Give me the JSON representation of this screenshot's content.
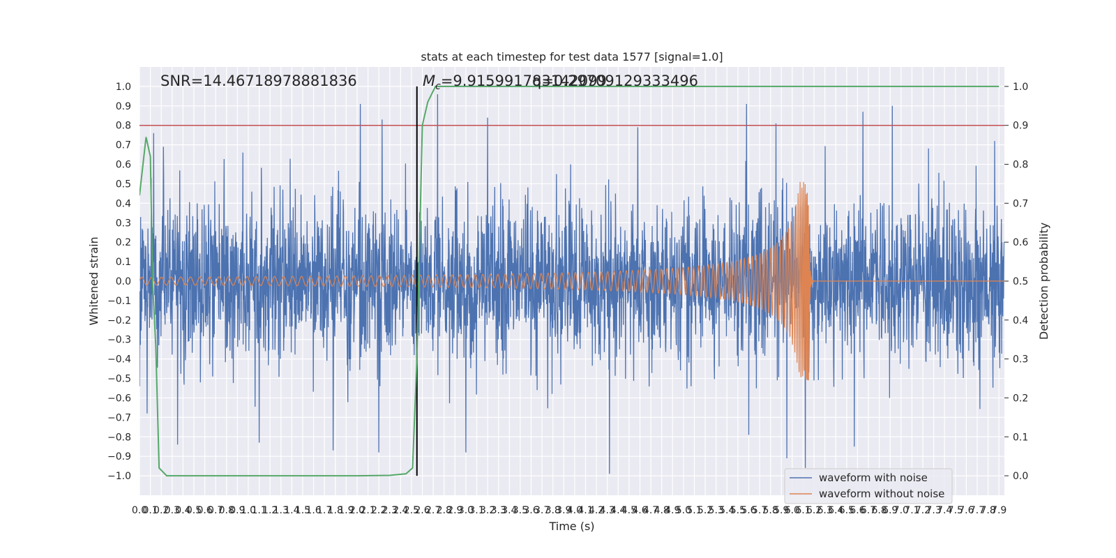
{
  "chart_data": {
    "type": "line",
    "title": "stats at each timestep for test data 1577 [signal=1.0]",
    "xlabel": "Time (s)",
    "ylabel_left": "Whitened strain",
    "ylabel_right": "Detection probability",
    "xlim": [
      0.0,
      7.95
    ],
    "ylim_left": [
      -1.1,
      1.1
    ],
    "ylim_right": [
      -0.05,
      1.05
    ],
    "x_ticks": [
      "0.0",
      "0.1",
      "0.2",
      "0.3",
      "0.4",
      "0.5",
      "0.6",
      "0.7",
      "0.8",
      "0.9",
      "1.0",
      "1.1",
      "1.2",
      "1.3",
      "1.4",
      "1.5",
      "1.6",
      "1.7",
      "1.8",
      "1.9",
      "2.0",
      "2.1",
      "2.2",
      "2.3",
      "2.4",
      "2.5",
      "2.6",
      "2.7",
      "2.8",
      "2.9",
      "3.0",
      "3.1",
      "3.2",
      "3.3",
      "3.4",
      "3.5",
      "3.6",
      "3.7",
      "3.8",
      "3.9",
      "4.0",
      "4.1",
      "4.2",
      "4.3",
      "4.4",
      "4.5",
      "4.6",
      "4.7",
      "4.8",
      "4.9",
      "5.0",
      "5.1",
      "5.2",
      "5.3",
      "5.4",
      "5.5",
      "5.6",
      "5.7",
      "5.8",
      "5.9",
      "6.0",
      "6.1",
      "6.2",
      "6.3",
      "6.4",
      "6.5",
      "6.6",
      "6.7",
      "6.8",
      "6.9",
      "7.0",
      "7.1",
      "7.2",
      "7.3",
      "7.4",
      "7.5",
      "7.6",
      "7.7",
      "7.8",
      "7.9"
    ],
    "y_ticks_left": [
      "−1.0",
      "−0.9",
      "−0.8",
      "−0.7",
      "−0.6",
      "−0.5",
      "−0.4",
      "−0.3",
      "−0.2",
      "−0.1",
      "0.0",
      "0.1",
      "0.2",
      "0.3",
      "0.4",
      "0.5",
      "0.6",
      "0.7",
      "0.8",
      "0.9",
      "1.0"
    ],
    "y_ticks_right": [
      "0.0",
      "0.1",
      "0.2",
      "0.3",
      "0.4",
      "0.5",
      "0.6",
      "0.7",
      "0.8",
      "0.9",
      "1.0"
    ],
    "annotations": {
      "snr": "SNR=14.46718978881836",
      "mc_symbol": "M",
      "mc_sub": "c",
      "mc_value": "=9.915991783142099",
      "q_text": "q=0.29709129333496"
    },
    "threshold_right": 0.9,
    "vline_x": 2.55,
    "merger_time": 6.15,
    "grid": true,
    "legend_position": "lower right",
    "series": [
      {
        "name": "waveform with noise",
        "color": "#4c72b0",
        "axis": "left",
        "sample_rate": 400,
        "noise_envelope": 0.32,
        "spikes": [
          {
            "x": 0.13,
            "y": 0.76
          },
          {
            "x": 0.22,
            "y": 0.69
          },
          {
            "x": 0.95,
            "y": 0.66
          },
          {
            "x": 2.03,
            "y": 0.91
          },
          {
            "x": 2.23,
            "y": 0.83
          },
          {
            "x": 2.74,
            "y": 0.96
          },
          {
            "x": 3.2,
            "y": 0.84
          },
          {
            "x": 4.58,
            "y": 0.79
          },
          {
            "x": 5.58,
            "y": 0.91
          },
          {
            "x": 5.85,
            "y": 0.81
          },
          {
            "x": 6.65,
            "y": 0.87
          },
          {
            "x": 6.92,
            "y": 0.9
          },
          {
            "x": 7.86,
            "y": 0.72
          },
          {
            "x": 4.32,
            "y": -0.99
          },
          {
            "x": 6.12,
            "y": -0.96
          },
          {
            "x": 3.0,
            "y": -0.88
          },
          {
            "x": 1.78,
            "y": -0.87
          },
          {
            "x": 2.2,
            "y": -0.88
          },
          {
            "x": 5.95,
            "y": -0.91
          },
          {
            "x": 0.35,
            "y": -0.84
          },
          {
            "x": 1.1,
            "y": -0.83
          },
          {
            "x": 6.57,
            "y": -0.85
          },
          {
            "x": 0.07,
            "y": -0.68
          },
          {
            "x": 5.6,
            "y": -0.79
          }
        ]
      },
      {
        "name": "waveform without noise",
        "color": "#dd8452",
        "axis": "left",
        "amp_start": 0.02,
        "peak": 0.39,
        "trough": -0.51
      },
      {
        "name": "detection probability",
        "color": "#55a868",
        "axis": "right",
        "x": [
          0.0,
          0.06,
          0.1,
          0.12,
          0.15,
          0.18,
          0.25,
          0.5,
          1.0,
          1.5,
          2.0,
          2.3,
          2.45,
          2.51,
          2.55,
          2.6,
          2.65,
          2.72,
          3.0,
          4.0,
          5.0,
          6.0,
          7.0,
          7.9
        ],
        "y": [
          0.72,
          0.87,
          0.82,
          0.5,
          0.33,
          0.02,
          0.0,
          0.0,
          0.0,
          0.0,
          0.0,
          0.001,
          0.005,
          0.02,
          0.3,
          0.9,
          0.96,
          1.0,
          1.0,
          1.0,
          1.0,
          1.0,
          1.0,
          1.0
        ]
      }
    ]
  }
}
